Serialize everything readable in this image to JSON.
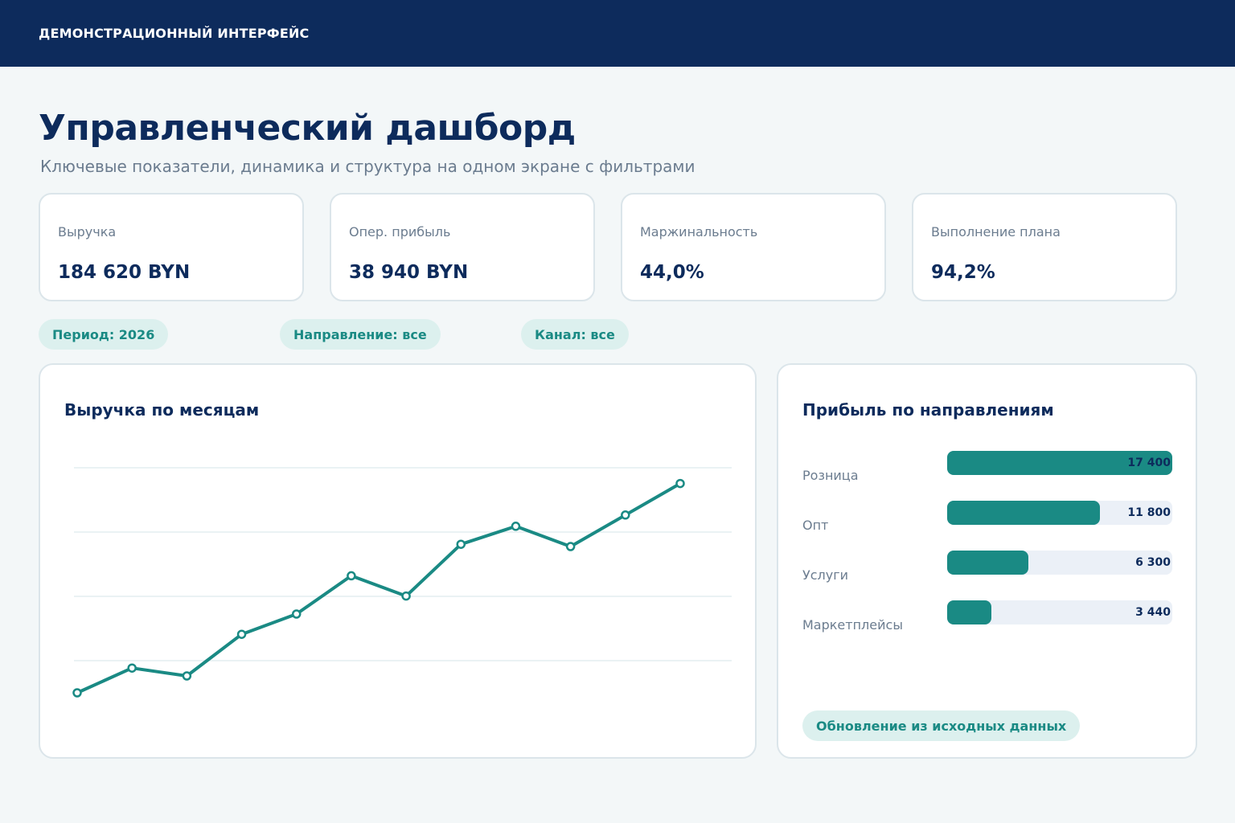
{
  "topbar": {
    "title": "ДЕМОНСТРАЦИОННЫЙ ИНТЕРФЕЙС"
  },
  "header": {
    "title": "Управленческий дашборд",
    "subtitle": "Ключевые показатели, динамика и структура на одном экране с фильтрами"
  },
  "kpis": [
    {
      "label": "Выручка",
      "value": "184 620 BYN"
    },
    {
      "label": "Опер. прибыль",
      "value": "38 940 BYN"
    },
    {
      "label": "Маржинальность",
      "value": "44,0%"
    },
    {
      "label": "Выполнение плана",
      "value": "94,2%"
    }
  ],
  "filters": [
    {
      "label": "Период: 2026"
    },
    {
      "label": "Направление: все"
    },
    {
      "label": "Канал: все"
    }
  ],
  "revenue_chart": {
    "title": "Выручка по месяцам"
  },
  "profit_chart": {
    "title": "Прибыль по направлениям",
    "bars": [
      {
        "label": "Розница",
        "value_text": "17 400"
      },
      {
        "label": "Опт",
        "value_text": "11 800"
      },
      {
        "label": "Услуги",
        "value_text": "6 300"
      },
      {
        "label": "Маркетплейсы",
        "value_text": "3 440"
      }
    ],
    "footer": "Обновление из исходных данных"
  },
  "colors": {
    "accent": "#1a8a84",
    "navy": "#0d2b5c",
    "chip_bg": "#dcf0ee",
    "track": "#ebf0f7"
  },
  "chart_data": [
    {
      "type": "line",
      "title": "Выручка по месяцам",
      "xlabel": "",
      "ylabel": "",
      "x": [
        1,
        2,
        3,
        4,
        5,
        6,
        7,
        8,
        9,
        10,
        11,
        12
      ],
      "series": [
        {
          "values": [
            0.0,
            1.1,
            0.75,
            2.6,
            3.5,
            5.2,
            4.3,
            6.6,
            7.4,
            6.5,
            7.9,
            9.3
          ]
        }
      ],
      "ylim": [
        0,
        10
      ],
      "grid": true
    },
    {
      "type": "bar",
      "title": "Прибыль по направлениям",
      "orientation": "horizontal",
      "categories": [
        "Розница",
        "Опт",
        "Услуги",
        "Маркетплейсы"
      ],
      "values": [
        17400,
        11800,
        6300,
        3440
      ],
      "xlim": [
        0,
        17400
      ]
    }
  ]
}
